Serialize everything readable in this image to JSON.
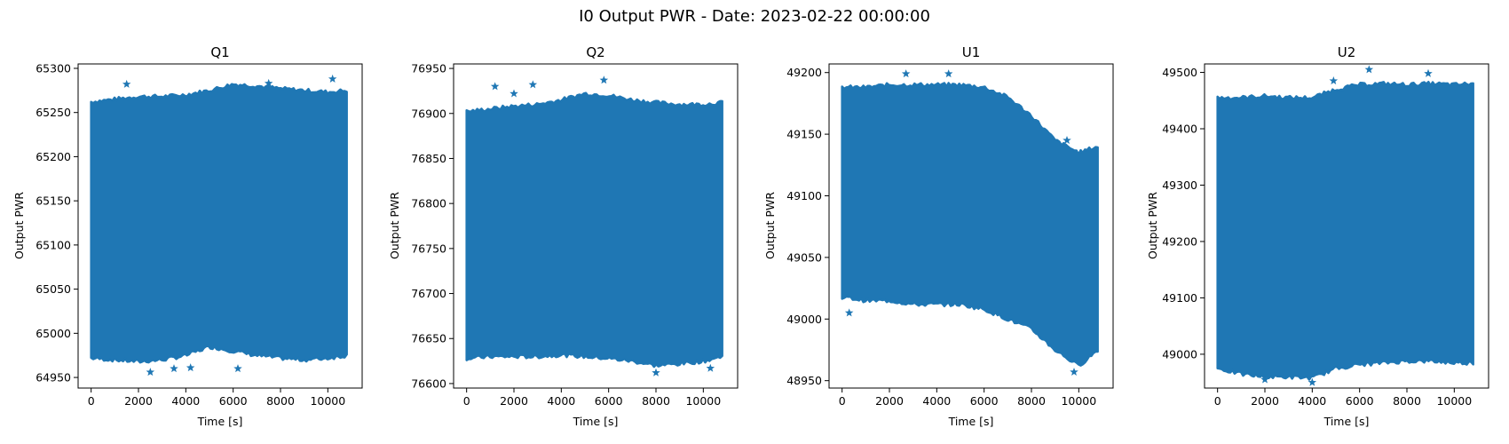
{
  "figure": {
    "title": "I0 Output PWR - Date: 2023-02-22 00:00:00"
  },
  "chart_data": [
    {
      "type": "scatter",
      "title": "Q1",
      "xlabel": "Time [s]",
      "ylabel": "Output PWR",
      "marker": "star",
      "color": "#1f77b4",
      "xlim": [
        -550,
        11450
      ],
      "ylim": [
        64938,
        65305
      ],
      "xticks": [
        0,
        2000,
        4000,
        6000,
        8000,
        10000
      ],
      "yticks": [
        64950,
        65000,
        65050,
        65100,
        65150,
        65200,
        65250,
        65300
      ],
      "x": [
        0,
        1000,
        2000,
        3000,
        4000,
        5000,
        6000,
        7000,
        8000,
        9000,
        10000,
        10800
      ],
      "upper": [
        65262,
        65265,
        65268,
        65268,
        65270,
        65275,
        65282,
        65280,
        65277,
        65275,
        65273,
        65275
      ],
      "lower": [
        64972,
        64970,
        64968,
        64970,
        64975,
        64985,
        64980,
        64975,
        64972,
        64970,
        64972,
        64975
      ],
      "outliers": [
        [
          1500,
          65282
        ],
        [
          2500,
          64956
        ],
        [
          3500,
          64960
        ],
        [
          4200,
          64961
        ],
        [
          7500,
          65283
        ],
        [
          10200,
          65288
        ],
        [
          6200,
          64960
        ]
      ]
    },
    {
      "type": "scatter",
      "title": "Q2",
      "xlabel": "Time [s]",
      "ylabel": "Output PWR",
      "marker": "star",
      "color": "#1f77b4",
      "xlim": [
        -550,
        11450
      ],
      "ylim": [
        76595,
        76955
      ],
      "xticks": [
        0,
        2000,
        4000,
        6000,
        8000,
        10000
      ],
      "yticks": [
        76600,
        76650,
        76700,
        76750,
        76800,
        76850,
        76900,
        76950
      ],
      "x": [
        0,
        1000,
        2000,
        3000,
        4000,
        5000,
        6000,
        7000,
        8000,
        9000,
        10000,
        10800
      ],
      "upper": [
        76902,
        76905,
        76908,
        76910,
        76915,
        76922,
        76920,
        76915,
        76912,
        76910,
        76910,
        76912
      ],
      "lower": [
        76628,
        76630,
        76630,
        76630,
        76632,
        76630,
        76628,
        76625,
        76620,
        76622,
        76625,
        76630
      ],
      "outliers": [
        [
          1200,
          76930
        ],
        [
          2000,
          76922
        ],
        [
          2800,
          76932
        ],
        [
          5800,
          76937
        ],
        [
          8000,
          76612
        ],
        [
          10300,
          76617
        ]
      ]
    },
    {
      "type": "scatter",
      "title": "U1",
      "xlabel": "Time [s]",
      "ylabel": "Output PWR",
      "marker": "star",
      "color": "#1f77b4",
      "xlim": [
        -550,
        11450
      ],
      "ylim": [
        48944,
        49207
      ],
      "xticks": [
        0,
        2000,
        4000,
        6000,
        8000,
        10000
      ],
      "yticks": [
        48950,
        49000,
        49050,
        49100,
        49150,
        49200
      ],
      "x": [
        0,
        1000,
        2000,
        3000,
        4000,
        5000,
        6000,
        7000,
        8000,
        9000,
        10000,
        10800
      ],
      "upper": [
        49188,
        49188,
        49190,
        49190,
        49190,
        49190,
        49188,
        49180,
        49165,
        49145,
        49135,
        49140
      ],
      "lower": [
        49018,
        49015,
        49015,
        49012,
        49012,
        49012,
        49008,
        49000,
        48992,
        48975,
        48962,
        48975
      ],
      "outliers": [
        [
          2700,
          49199
        ],
        [
          4500,
          49199
        ],
        [
          300,
          49005
        ],
        [
          9800,
          48957
        ],
        [
          9500,
          49145
        ]
      ]
    },
    {
      "type": "scatter",
      "title": "U2",
      "xlabel": "Time [s]",
      "ylabel": "Output PWR",
      "marker": "star",
      "color": "#1f77b4",
      "xlim": [
        -550,
        11450
      ],
      "ylim": [
        48940,
        49515
      ],
      "xticks": [
        0,
        2000,
        4000,
        6000,
        8000,
        10000
      ],
      "yticks": [
        49000,
        49100,
        49200,
        49300,
        49400,
        49500
      ],
      "x": [
        0,
        1000,
        2000,
        3000,
        4000,
        5000,
        6000,
        7000,
        8000,
        9000,
        10000,
        10800
      ],
      "upper": [
        49455,
        49455,
        49458,
        49455,
        49455,
        49470,
        49478,
        49480,
        49478,
        49480,
        49478,
        49480
      ],
      "lower": [
        48975,
        48965,
        48960,
        48960,
        48958,
        48975,
        48982,
        48985,
        48988,
        48988,
        48985,
        48985
      ],
      "outliers": [
        [
          6400,
          49505
        ],
        [
          8900,
          49498
        ],
        [
          4900,
          49485
        ],
        [
          4000,
          48950
        ],
        [
          2000,
          48955
        ]
      ]
    }
  ]
}
